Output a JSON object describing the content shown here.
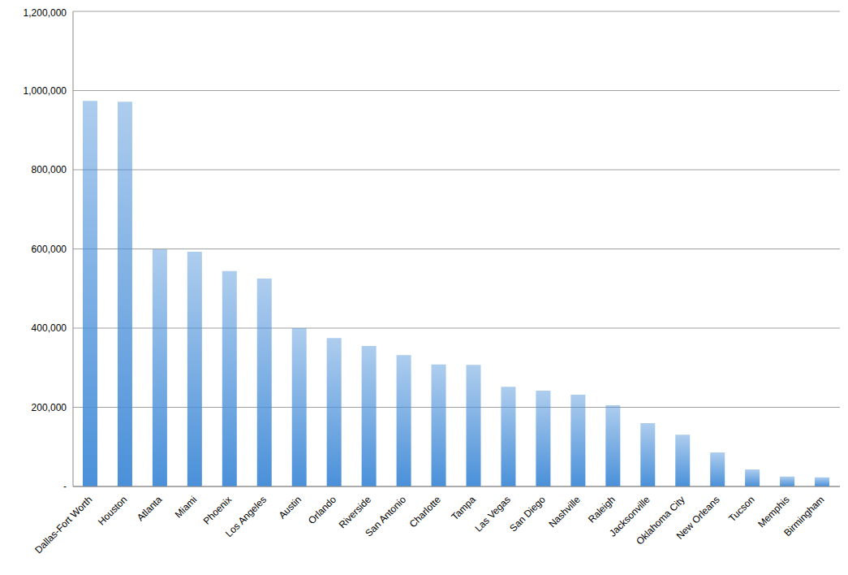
{
  "chart_data": {
    "type": "bar",
    "categories": [
      "Dallas-Fort Worth",
      "Houston",
      "Atlanta",
      "Miami",
      "Phoenix",
      "Los Angeles",
      "Austin",
      "Orlando",
      "Riverside",
      "San Antonio",
      "Charlotte",
      "Tampa",
      "Las Vegas",
      "San Diego",
      "Nashville",
      "Raleigh",
      "Jacksonville",
      "Oklahoma City",
      "New Orleans",
      "Tucson",
      "Memphis",
      "Birmingham"
    ],
    "values": [
      974000,
      972000,
      599000,
      593000,
      544000,
      525000,
      400000,
      375000,
      355000,
      332000,
      308000,
      307000,
      252000,
      242000,
      232000,
      205000,
      160000,
      131000,
      86000,
      43000,
      25000,
      23000
    ],
    "color": "#4a90d9",
    "ylim": [
      0,
      1200000
    ],
    "yticks": [
      {
        "value": 0,
        "label": "-"
      },
      {
        "value": 200000,
        "label": "200,000"
      },
      {
        "value": 400000,
        "label": "400,000"
      },
      {
        "value": 600000,
        "label": "600,000"
      },
      {
        "value": 800000,
        "label": "800,000"
      },
      {
        "value": 1000000,
        "label": "1,000,000"
      },
      {
        "value": 1200000,
        "label": "1,200,000"
      }
    ],
    "grid": true
  }
}
